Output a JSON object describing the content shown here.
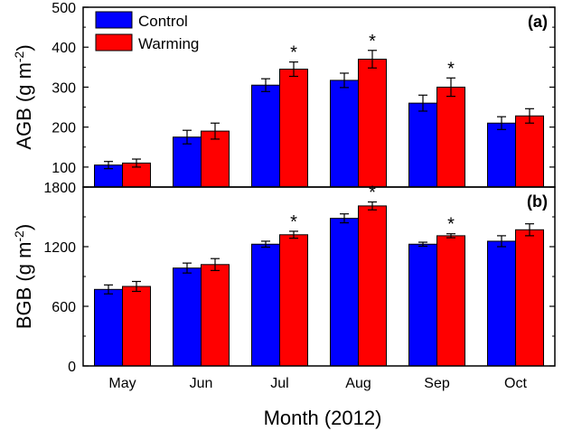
{
  "chart_data": [
    {
      "type": "bar",
      "panel_label": "(a)",
      "categories": [
        "May",
        "Jun",
        "Jul",
        "Aug",
        "Sep",
        "Oct"
      ],
      "ylabel_main": "AGB (g m",
      "ylabel_sup": "-2",
      "ylabel_close": ")",
      "ylim": [
        50,
        500
      ],
      "yticks": [
        100,
        200,
        300,
        400,
        500
      ],
      "series": [
        {
          "name": "Control",
          "color": "#0000ff",
          "values": [
            105,
            175,
            305,
            317,
            260,
            210
          ],
          "errors": [
            9,
            17,
            16,
            18,
            20,
            16
          ]
        },
        {
          "name": "Warming",
          "color": "#ff0000",
          "values": [
            110,
            190,
            345,
            370,
            300,
            228
          ],
          "errors": [
            10,
            20,
            18,
            22,
            23,
            18
          ]
        }
      ],
      "significance": [
        "",
        "",
        "*",
        "*",
        "*",
        ""
      ],
      "legend_position": "top-left"
    },
    {
      "type": "bar",
      "panel_label": "(b)",
      "categories": [
        "May",
        "Jun",
        "Jul",
        "Aug",
        "Sep",
        "Oct"
      ],
      "xlabel": "Month (2012)",
      "ylabel_main": "BGB (g m",
      "ylabel_sup": "-2",
      "ylabel_close": ")",
      "ylim": [
        0,
        1800
      ],
      "yticks": [
        0,
        600,
        1200,
        1800
      ],
      "series": [
        {
          "name": "Control",
          "color": "#0000ff",
          "values": [
            770,
            985,
            1225,
            1485,
            1225,
            1255
          ],
          "errors": [
            45,
            50,
            30,
            45,
            20,
            55
          ]
        },
        {
          "name": "Warming",
          "color": "#ff0000",
          "values": [
            800,
            1020,
            1320,
            1610,
            1310,
            1370
          ],
          "errors": [
            50,
            60,
            35,
            40,
            20,
            60
          ]
        }
      ],
      "significance": [
        "",
        "",
        "*",
        "*",
        "*",
        ""
      ]
    }
  ],
  "legend": {
    "items": [
      {
        "label": "Control",
        "color": "#0000ff"
      },
      {
        "label": "Warming",
        "color": "#ff0000"
      }
    ]
  }
}
